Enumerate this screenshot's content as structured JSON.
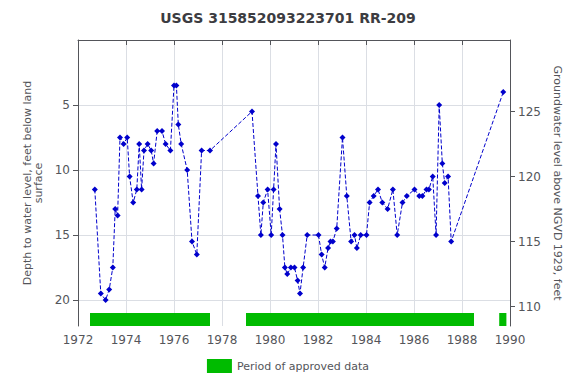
{
  "chart_data": {
    "type": "line",
    "title": "USGS 315852093223701 RR-209",
    "ylabel": "Depth to water level, feet below land\nsurface",
    "y2label": "Groundwater level above NGVD 1929, feet",
    "xlim": [
      1972,
      1990
    ],
    "xticks": [
      1972,
      1974,
      1976,
      1978,
      1980,
      1982,
      1984,
      1986,
      1988,
      1990
    ],
    "ylim": [
      22,
      0
    ],
    "yticks": [
      5,
      10,
      15,
      20
    ],
    "y2lim": [
      108.5,
      130.5
    ],
    "y2ticks": [
      110,
      115,
      120,
      125
    ],
    "grid": true,
    "legend": "bottom",
    "x": [
      1972.7,
      1972.95,
      1973.15,
      1973.3,
      1973.45,
      1973.55,
      1973.65,
      1973.75,
      1973.9,
      1974.05,
      1974.15,
      1974.3,
      1974.45,
      1974.55,
      1974.65,
      1974.75,
      1974.9,
      1975.05,
      1975.15,
      1975.3,
      1975.5,
      1975.65,
      1975.85,
      1976.0,
      1976.1,
      1976.18,
      1976.3,
      1976.55,
      1976.75,
      1976.95,
      1977.15,
      1977.5,
      1979.25,
      1979.5,
      1979.62,
      1979.72,
      1979.9,
      1980.05,
      1980.15,
      1980.25,
      1980.4,
      1980.52,
      1980.62,
      1980.72,
      1980.87,
      1981.02,
      1981.15,
      1981.25,
      1981.38,
      1981.55,
      1982.02,
      1982.15,
      1982.28,
      1982.42,
      1982.52,
      1982.62,
      1982.78,
      1983.02,
      1983.2,
      1983.38,
      1983.52,
      1983.62,
      1983.78,
      1984.02,
      1984.15,
      1984.32,
      1984.5,
      1984.68,
      1984.9,
      1985.12,
      1985.3,
      1985.52,
      1985.7,
      1986.02,
      1986.22,
      1986.35,
      1986.52,
      1986.62,
      1986.78,
      1986.92,
      1987.05,
      1987.18,
      1987.28,
      1987.42,
      1987.55,
      1989.72
    ],
    "series": [
      {
        "color": "#0000cc",
        "marker": "diamond",
        "line_style": "dashed",
        "values": [
          11.5,
          19.5,
          20.0,
          19.2,
          17.5,
          13.0,
          13.5,
          7.5,
          8.0,
          7.5,
          10.5,
          12.5,
          11.5,
          8.0,
          11.5,
          8.5,
          8.0,
          8.5,
          9.5,
          7.0,
          7.0,
          8.0,
          8.5,
          3.5,
          3.5,
          6.5,
          8.0,
          10.0,
          15.5,
          16.5,
          8.5,
          8.5,
          5.5,
          12.0,
          15.0,
          12.5,
          11.5,
          15.0,
          11.5,
          8.0,
          13.0,
          15.0,
          17.5,
          18.0,
          17.5,
          17.5,
          18.5,
          19.5,
          17.5,
          15.0,
          15.0,
          16.5,
          17.5,
          16.0,
          15.5,
          15.5,
          14.5,
          7.5,
          12.0,
          15.5,
          15.0,
          16.0,
          15.0,
          15.0,
          12.5,
          12.0,
          11.5,
          12.5,
          13.0,
          11.5,
          15.0,
          12.5,
          12.0,
          11.5,
          12.0,
          12.0,
          11.5,
          11.5,
          10.5,
          15.0,
          5.0,
          9.5,
          11.0,
          10.5,
          15.5,
          4.0
        ]
      }
    ],
    "approved_periods": {
      "name": "Period of approved data",
      "color": "#00bb00",
      "periods": [
        [
          1972.5,
          1977.5
        ],
        [
          1979.0,
          1988.5
        ],
        [
          1989.55,
          1989.85
        ]
      ],
      "depth": [
        21.0,
        22.0
      ]
    }
  }
}
